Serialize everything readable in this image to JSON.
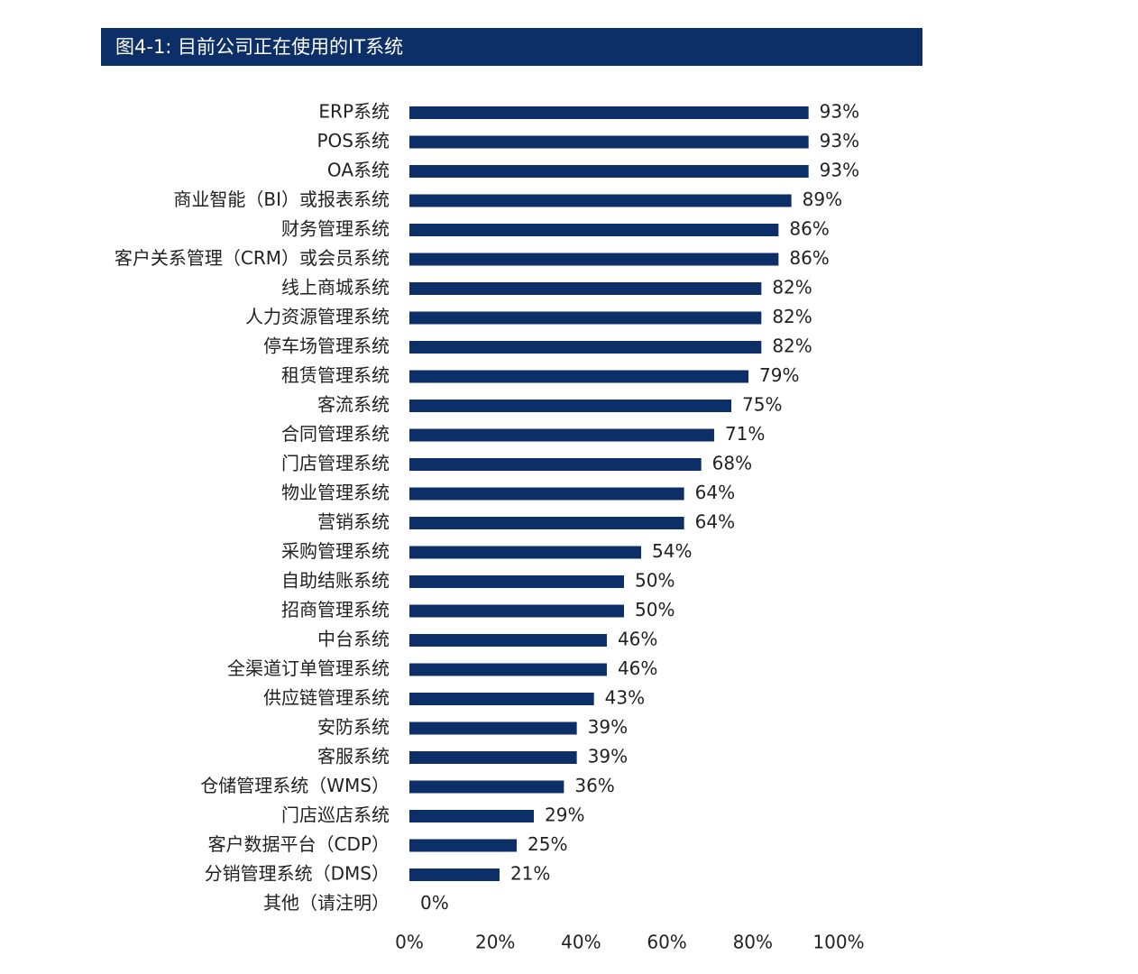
{
  "title": "图4-1: 目前公司正在使用的IT系统",
  "colors": {
    "bar": "#0b2f66",
    "title_bg": "#0b2f66"
  },
  "chart_data": {
    "type": "bar",
    "orientation": "horizontal",
    "title": "图4-1: 目前公司正在使用的IT系统",
    "xlabel": "",
    "ylabel": "",
    "xlim": [
      0,
      100
    ],
    "grid": false,
    "legend": "none",
    "categories": [
      "ERP系统",
      "POS系统",
      "OA系统",
      "商业智能（BI）或报表系统",
      "财务管理系统",
      "客户关系管理（CRM）或会员系统",
      "线上商城系统",
      "人力资源管理系统",
      "停车场管理系统",
      "租赁管理系统",
      "客流系统",
      "合同管理系统",
      "门店管理系统",
      "物业管理系统",
      "营销系统",
      "采购管理系统",
      "自助结账系统",
      "招商管理系统",
      "中台系统",
      "全渠道订单管理系统",
      "供应链管理系统",
      "安防系统",
      "客服系统",
      "仓储管理系统（WMS）",
      "门店巡店系统",
      "客户数据平台（CDP）",
      "分销管理系统（DMS）",
      "其他（请注明）"
    ],
    "values": [
      93,
      93,
      93,
      89,
      86,
      86,
      82,
      82,
      82,
      79,
      75,
      71,
      68,
      64,
      64,
      54,
      50,
      50,
      46,
      46,
      43,
      39,
      39,
      36,
      29,
      25,
      21,
      0
    ],
    "value_labels": [
      "93%",
      "93%",
      "93%",
      "89%",
      "86%",
      "86%",
      "82%",
      "82%",
      "82%",
      "79%",
      "75%",
      "71%",
      "68%",
      "64%",
      "64%",
      "54%",
      "50%",
      "50%",
      "46%",
      "46%",
      "43%",
      "39%",
      "39%",
      "36%",
      "29%",
      "25%",
      "21%",
      "0%"
    ],
    "x_ticks": [
      "0%",
      "20%",
      "40%",
      "60%",
      "80%",
      "100%"
    ],
    "x_tick_values": [
      0,
      20,
      40,
      60,
      80,
      100
    ]
  }
}
